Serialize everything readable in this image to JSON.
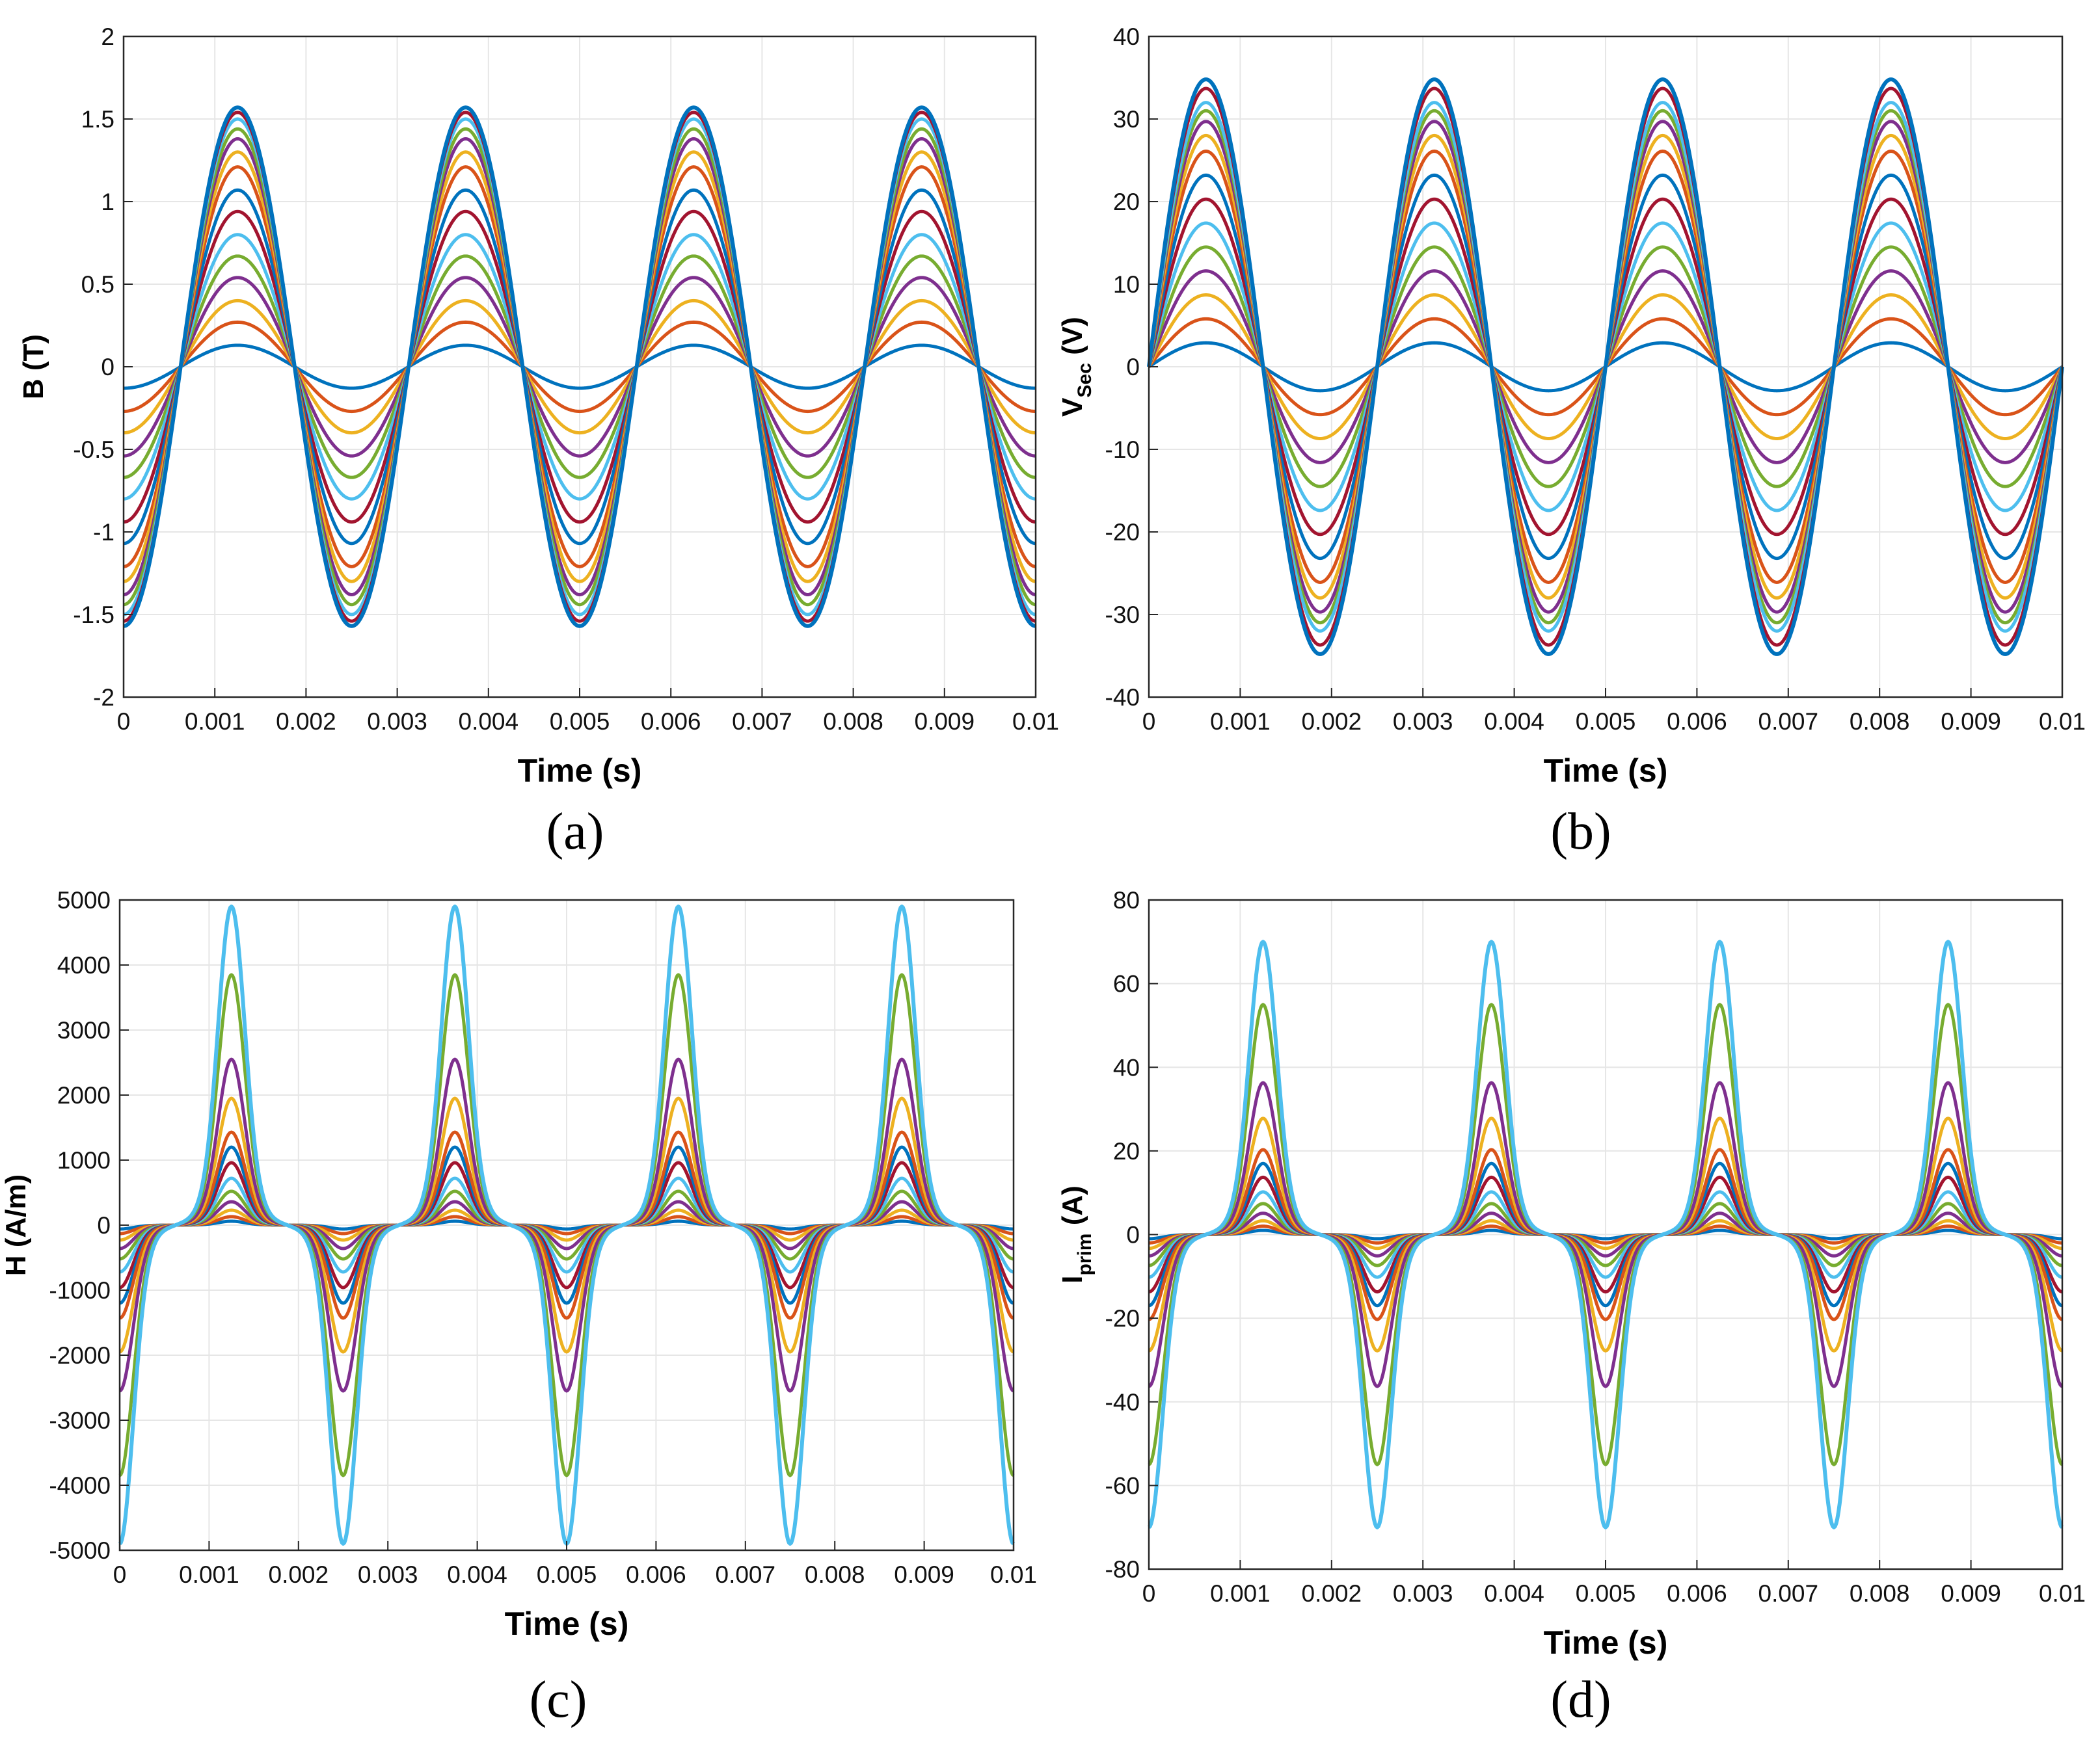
{
  "series_colors": [
    "#0072BD",
    "#D95319",
    "#EDB120",
    "#7E2F8E",
    "#77AC30",
    "#4DBEEE",
    "#A2142F",
    "#0072BD",
    "#D95319",
    "#EDB120",
    "#7E2F8E",
    "#77AC30",
    "#4DBEEE",
    "#A2142F",
    "#0072BD"
  ],
  "chart_data": [
    {
      "type": "line",
      "panel": "a",
      "caption": "(a)",
      "xlabel": "Time (s)",
      "ylabel": "B (T)",
      "ylabel_main": "B (T)",
      "ylabel_sub": "",
      "ylabel_tail": "",
      "xlim": [
        0,
        0.01
      ],
      "ylim": [
        -2,
        2
      ],
      "xticks": [
        0,
        0.001,
        0.002,
        0.003,
        0.004,
        0.005,
        0.006,
        0.007,
        0.008,
        0.009,
        0.01
      ],
      "xtick_labels": [
        "0",
        "0.001",
        "0.002",
        "0.003",
        "0.004",
        "0.005",
        "0.006",
        "0.007",
        "0.008",
        "0.009",
        "0.01"
      ],
      "yticks": [
        -2,
        -1.5,
        -1,
        -0.5,
        0,
        0.5,
        1,
        1.5,
        2
      ],
      "ytick_labels": [
        "-2",
        "-1.5",
        "-1",
        "-0.5",
        "0",
        "0.5",
        "1",
        "1.5",
        "2"
      ],
      "grid": true,
      "waveform": "-cos",
      "frequency_hz": 400,
      "series_amplitudes": [
        0.13,
        0.27,
        0.4,
        0.54,
        0.67,
        0.8,
        0.94,
        1.07,
        1.21,
        1.3,
        1.38,
        1.44,
        1.5,
        1.54,
        1.57
      ]
    },
    {
      "type": "line",
      "panel": "b",
      "caption": "(b)",
      "xlabel": "Time (s)",
      "ylabel": "V_Sec (V)",
      "ylabel_main": "V",
      "ylabel_sub": "Sec",
      "ylabel_tail": " (V)",
      "xlim": [
        0,
        0.01
      ],
      "ylim": [
        -40,
        40
      ],
      "xticks": [
        0,
        0.001,
        0.002,
        0.003,
        0.004,
        0.005,
        0.006,
        0.007,
        0.008,
        0.009,
        0.01
      ],
      "xtick_labels": [
        "0",
        "0.001",
        "0.002",
        "0.003",
        "0.004",
        "0.005",
        "0.006",
        "0.007",
        "0.008",
        "0.009",
        "0.01"
      ],
      "yticks": [
        -40,
        -30,
        -20,
        -10,
        0,
        10,
        20,
        30,
        40
      ],
      "ytick_labels": [
        "-40",
        "-30",
        "-20",
        "-10",
        "0",
        "10",
        "20",
        "30",
        "40"
      ],
      "grid": true,
      "waveform": "sin",
      "frequency_hz": 400,
      "series_amplitudes": [
        2.9,
        5.8,
        8.7,
        11.6,
        14.5,
        17.4,
        20.3,
        23.2,
        26.1,
        28.0,
        29.7,
        31.0,
        32.0,
        33.7,
        34.8
      ]
    },
    {
      "type": "line",
      "panel": "c",
      "caption": "(c)",
      "xlabel": "Time (s)",
      "ylabel": "H (A/m)",
      "ylabel_main": "H (A/m)",
      "ylabel_sub": "",
      "ylabel_tail": "",
      "xlim": [
        0,
        0.01
      ],
      "ylim": [
        -5000,
        5000
      ],
      "xticks": [
        0,
        0.001,
        0.002,
        0.003,
        0.004,
        0.005,
        0.006,
        0.007,
        0.008,
        0.009,
        0.01
      ],
      "xtick_labels": [
        "0",
        "0.001",
        "0.002",
        "0.003",
        "0.004",
        "0.005",
        "0.006",
        "0.007",
        "0.008",
        "0.009",
        "0.01"
      ],
      "yticks": [
        -5000,
        -4000,
        -3000,
        -2000,
        -1000,
        0,
        1000,
        2000,
        3000,
        4000,
        5000
      ],
      "ytick_labels": [
        "-5000",
        "-4000",
        "-3000",
        "-2000",
        "-1000",
        "0",
        "1000",
        "2000",
        "3000",
        "4000",
        "5000"
      ],
      "grid": true,
      "waveform": "peaked",
      "frequency_hz": 400,
      "series_amplitudes": [
        60,
        130,
        230,
        360,
        520,
        720,
        960,
        1200,
        1430,
        1950,
        2550,
        3850,
        4900
      ]
    },
    {
      "type": "line",
      "panel": "d",
      "caption": "(d)",
      "xlabel": "Time (s)",
      "ylabel": "I_prim (A)",
      "ylabel_main": "I",
      "ylabel_sub": "prim",
      "ylabel_tail": " (A)",
      "xlim": [
        0,
        0.01
      ],
      "ylim": [
        -80,
        80
      ],
      "xticks": [
        0,
        0.001,
        0.002,
        0.003,
        0.004,
        0.005,
        0.006,
        0.007,
        0.008,
        0.009,
        0.01
      ],
      "xtick_labels": [
        "0",
        "0.001",
        "0.002",
        "0.003",
        "0.004",
        "0.005",
        "0.006",
        "0.007",
        "0.008",
        "0.009",
        "0.01"
      ],
      "yticks": [
        -80,
        -60,
        -40,
        -20,
        0,
        20,
        40,
        60,
        80
      ],
      "ytick_labels": [
        "-80",
        "-60",
        "-40",
        "-20",
        "0",
        "20",
        "40",
        "60",
        "80"
      ],
      "grid": true,
      "waveform": "peaked",
      "frequency_hz": 400,
      "series_amplitudes": [
        1,
        2,
        3.3,
        5.1,
        7.4,
        10.2,
        13.7,
        17.0,
        20.3,
        27.8,
        36.3,
        55.0,
        70.0
      ]
    }
  ]
}
